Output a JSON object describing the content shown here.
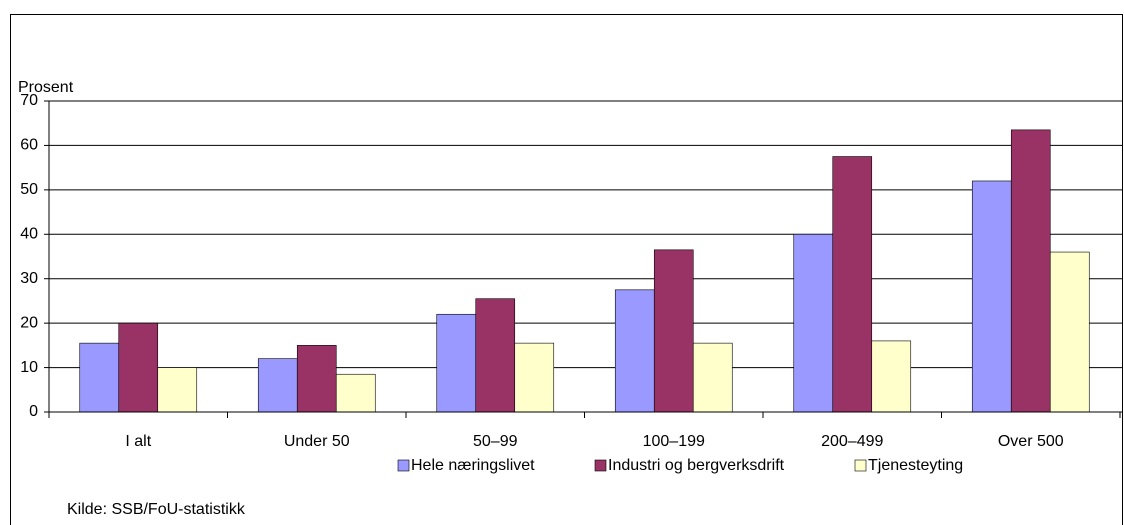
{
  "chart_data": {
    "type": "bar",
    "y_axis_label": "Prosent",
    "source": "Kilde: SSB/FoU-statistikk",
    "categories": [
      "I alt",
      "Under 50",
      "50–99",
      "100–199",
      "200–499",
      "Over 500"
    ],
    "series": [
      {
        "name": "Hele næringslivet",
        "color": "#9999ff",
        "values": [
          15.5,
          12,
          22,
          27.5,
          40,
          52
        ]
      },
      {
        "name": "Industri og bergverksdrift",
        "color": "#993366",
        "values": [
          20,
          15,
          25.5,
          36.5,
          57.5,
          63.5
        ]
      },
      {
        "name": "Tjenesteyting",
        "color": "#ffffcc",
        "values": [
          10,
          8.5,
          15.5,
          15.5,
          16,
          36
        ]
      }
    ],
    "ylim": [
      0,
      70
    ],
    "yticks": [
      0,
      10,
      20,
      30,
      40,
      50,
      60,
      70
    ],
    "grid": true,
    "legend": "bottom"
  }
}
